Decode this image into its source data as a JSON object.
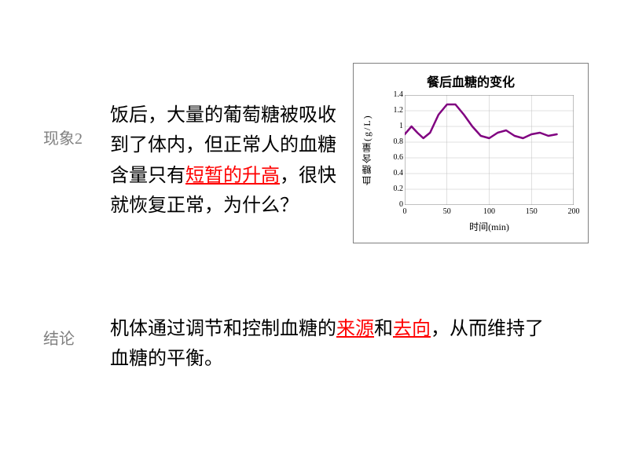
{
  "labels": {
    "phenomenon": "现象2",
    "conclusion": "结论"
  },
  "phenomenon": {
    "part1": "饭后，大量的葡萄糖被吸收到了体内，但正常人的血糖含量只有",
    "highlight": "短暂的升高",
    "part2": "，很快就恢复正常，为什么？"
  },
  "conclusion": {
    "part1": "机体通过调节和控制血糖的",
    "hl1": "来源",
    "part2": "和",
    "hl2": "去向",
    "part3": "，从而维持了血糖的平衡。"
  },
  "chart": {
    "title": "餐后血糖的变化",
    "ylabel": "血糖含量(g/L)",
    "xlabel": "时间(min)",
    "xlim": [
      0,
      200
    ],
    "ylim": [
      0,
      1.4
    ],
    "yticks": [
      0,
      0.2,
      0.4,
      0.6,
      0.8,
      1,
      1.2,
      1.4
    ],
    "xticks": [
      0,
      50,
      100,
      150,
      200
    ],
    "line_color": "#800080",
    "line_width": 2.5,
    "grid_color": "#c0c0c0",
    "bg_color": "#ffffff",
    "points": [
      [
        0,
        0.9
      ],
      [
        8,
        1.0
      ],
      [
        15,
        0.92
      ],
      [
        22,
        0.85
      ],
      [
        30,
        0.92
      ],
      [
        40,
        1.15
      ],
      [
        50,
        1.28
      ],
      [
        60,
        1.28
      ],
      [
        70,
        1.15
      ],
      [
        80,
        1.0
      ],
      [
        90,
        0.88
      ],
      [
        100,
        0.85
      ],
      [
        110,
        0.92
      ],
      [
        120,
        0.95
      ],
      [
        130,
        0.88
      ],
      [
        140,
        0.85
      ],
      [
        150,
        0.9
      ],
      [
        160,
        0.92
      ],
      [
        170,
        0.88
      ],
      [
        180,
        0.9
      ]
    ]
  }
}
